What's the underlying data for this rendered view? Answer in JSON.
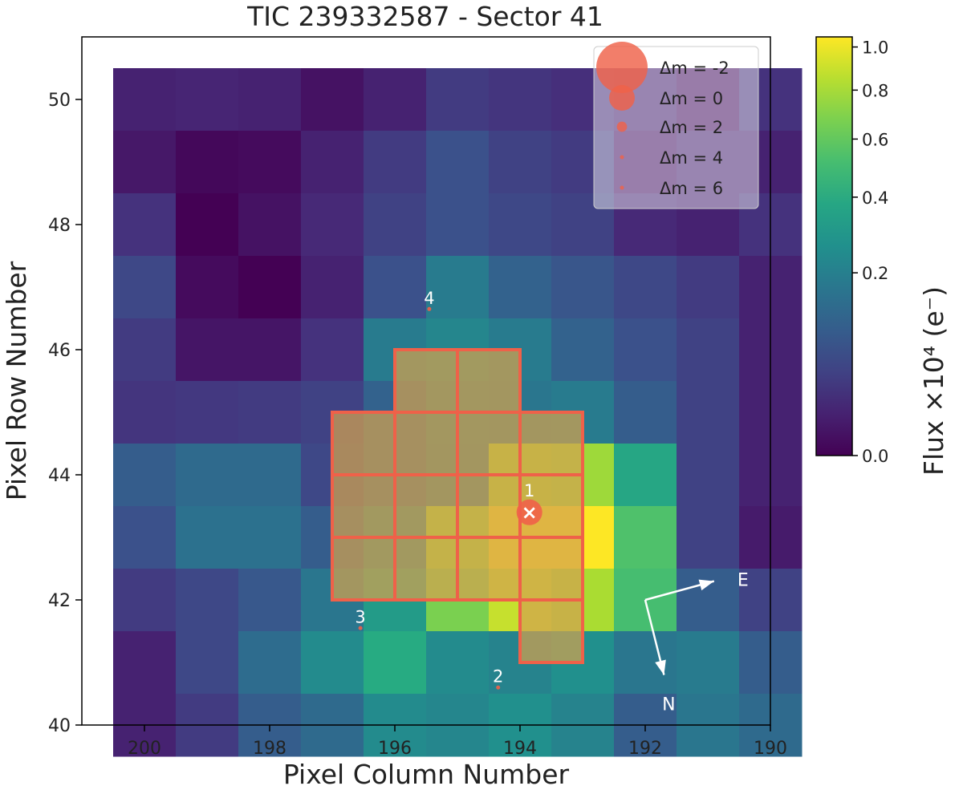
{
  "chart_data": {
    "type": "heatmap",
    "title": "TIC 239332587 - Sector 41",
    "xlabel": "Pixel Column Number",
    "ylabel": "Pixel Row Number",
    "xlim": [
      201,
      190
    ],
    "ylim": [
      40,
      51
    ],
    "x_ticks": [
      200,
      198,
      196,
      194,
      192,
      190
    ],
    "y_ticks": [
      40,
      42,
      44,
      46,
      48,
      50
    ],
    "grid": false,
    "colormap": "viridis",
    "columns": [
      200,
      199,
      198,
      197,
      196,
      195,
      194,
      193,
      192,
      191,
      190
    ],
    "rows": [
      50,
      49,
      48,
      47,
      46,
      45,
      44,
      43,
      42,
      41,
      40
    ],
    "flux_levels": [
      [
        0.1,
        0.11,
        0.1,
        0.05,
        0.1,
        0.18,
        0.16,
        0.14,
        0.1,
        0.05,
        0.15
      ],
      [
        0.07,
        0.02,
        0.03,
        0.1,
        0.18,
        0.25,
        0.2,
        0.18,
        0.06,
        0.1,
        0.1
      ],
      [
        0.15,
        0.0,
        0.05,
        0.12,
        0.2,
        0.25,
        0.22,
        0.2,
        0.12,
        0.1,
        0.15
      ],
      [
        0.22,
        0.03,
        0.0,
        0.1,
        0.25,
        0.42,
        0.32,
        0.27,
        0.22,
        0.18,
        0.1
      ],
      [
        0.18,
        0.06,
        0.06,
        0.15,
        0.42,
        0.46,
        0.42,
        0.32,
        0.25,
        0.2,
        0.1
      ],
      [
        0.16,
        0.17,
        0.18,
        0.2,
        0.32,
        0.42,
        0.4,
        0.42,
        0.3,
        0.2,
        0.1
      ],
      [
        0.3,
        0.35,
        0.35,
        0.22,
        0.32,
        0.4,
        0.88,
        0.86,
        0.6,
        0.2,
        0.1
      ],
      [
        0.25,
        0.38,
        0.38,
        0.3,
        0.45,
        0.86,
        1.0,
        1.0,
        0.72,
        0.2,
        0.08
      ],
      [
        0.18,
        0.22,
        0.28,
        0.4,
        0.55,
        0.8,
        0.92,
        0.88,
        0.7,
        0.3,
        0.2
      ],
      [
        0.1,
        0.22,
        0.36,
        0.48,
        0.62,
        0.48,
        0.45,
        0.5,
        0.4,
        0.42,
        0.3
      ],
      [
        0.1,
        0.18,
        0.3,
        0.35,
        0.48,
        0.46,
        0.5,
        0.45,
        0.3,
        0.4,
        0.35
      ]
    ],
    "aperture_pixels": [
      [
        195,
        45
      ],
      [
        194,
        45
      ],
      [
        196,
        44
      ],
      [
        195,
        44
      ],
      [
        194,
        44
      ],
      [
        193,
        44
      ],
      [
        196,
        43
      ],
      [
        195,
        43
      ],
      [
        194,
        43
      ],
      [
        193,
        43
      ],
      [
        196,
        42
      ],
      [
        195,
        42
      ],
      [
        194,
        42
      ],
      [
        193,
        42
      ],
      [
        193,
        41
      ]
    ],
    "aperture_color": "#ef6149",
    "aperture_fill": "#d3a24f",
    "stars": [
      {
        "label": "1",
        "x": 193.85,
        "y": 43.4,
        "dm": 0
      },
      {
        "label": "2",
        "x": 194.35,
        "y": 40.6,
        "dm": 5
      },
      {
        "label": "3",
        "x": 196.55,
        "y": 41.55,
        "dm": 5
      },
      {
        "label": "4",
        "x": 195.45,
        "y": 46.65,
        "dm": 5
      }
    ],
    "target_marker": "×",
    "legend": {
      "placement": "top-right",
      "entries": [
        "Δm = -2",
        "Δm = 0",
        "Δm = 2",
        "Δm = 4",
        "Δm = 6"
      ],
      "dm_values": [
        -2,
        0,
        2,
        4,
        6
      ]
    },
    "compass": {
      "east_label": "E",
      "north_label": "N",
      "origin": [
        192,
        42
      ],
      "east_tip": [
        190.9,
        42.3
      ],
      "north_tip": [
        191.7,
        40.8
      ]
    },
    "colorbar": {
      "label": "Flux ×10⁴ (e⁻)",
      "ticks": [
        {
          "value": 0.0,
          "label": "0.0"
        },
        {
          "value": 0.2,
          "label": "0.2"
        },
        {
          "value": 0.4,
          "label": "0.4"
        },
        {
          "value": 0.6,
          "label": "0.6"
        },
        {
          "value": 0.8,
          "label": "0.8"
        },
        {
          "value": 1.0,
          "label": "1.0"
        }
      ],
      "scale": "sqrt",
      "range": [
        0,
        1.05
      ]
    },
    "marker_color": "#ef6149"
  }
}
